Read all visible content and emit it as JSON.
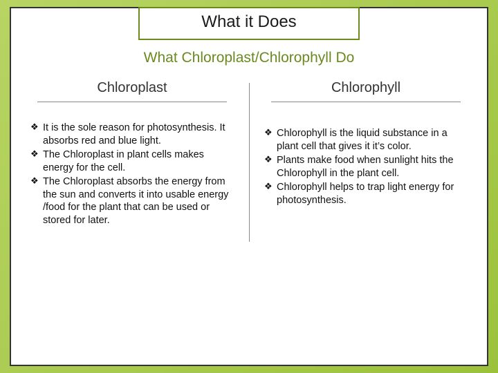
{
  "title": "What it Does",
  "subtitle": "What Chloroplast/Chlorophyll Do",
  "colors": {
    "accent": "#6a8a1f",
    "text": "#111111",
    "border": "#333333",
    "bg_grad_start": "#b8d464",
    "bg_grad_end": "#9cc23c"
  },
  "bullet_glyph": "❖",
  "left": {
    "heading": "Chloroplast",
    "items": [
      "It is the sole reason for photosynthesis. It absorbs red and blue light.",
      "The Chloroplast in plant cells makes energy for the cell.",
      "The Chloroplast absorbs the energy from the sun and converts it into usable energy /food for the plant that can be used or stored for later."
    ]
  },
  "right": {
    "heading": "Chlorophyll",
    "items": [
      "Chlorophyll is the liquid substance in a plant cell that gives it it’s color.",
      "Plants make food when sunlight hits the Chlorophyll in the plant cell.",
      "Chlorophyll helps to trap light energy for photosynthesis."
    ]
  }
}
